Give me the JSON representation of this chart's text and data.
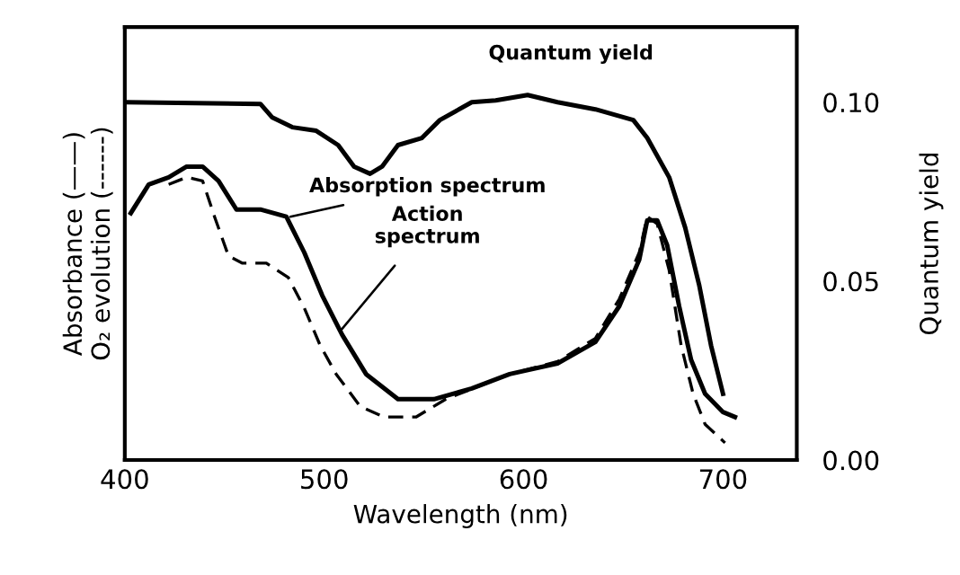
{
  "chart_data": {
    "type": "line",
    "xlabel": "Wavelength (nm)",
    "ylabel": "Absorbance (——)\nO₂ evolution (------)",
    "y2label": "Quantum yield",
    "xlim": [
      400,
      737
    ],
    "xticks": [
      400,
      500,
      600,
      700
    ],
    "ylim": [
      0,
      0.121
    ],
    "yticks": [
      {
        "value": 0,
        "label": "0.00"
      },
      {
        "value": 0.05,
        "label": "0.05"
      },
      {
        "value": 0.1,
        "label": "0.10"
      }
    ],
    "grid": false,
    "legend": false,
    "marker": "none",
    "series": [
      {
        "color": "#000000",
        "line_style": "solid",
        "x": [
          400,
          468,
          474,
          484,
          496,
          507,
          515,
          523,
          529,
          537,
          549,
          558,
          574,
          586,
          602,
          617,
          636,
          655,
          662,
          673,
          681,
          688,
          694,
          700
        ],
        "values": [
          0.1,
          0.0995,
          0.0957,
          0.093,
          0.092,
          0.088,
          0.082,
          0.08,
          0.082,
          0.088,
          0.09,
          0.095,
          0.1,
          0.1005,
          0.102,
          0.1,
          0.098,
          0.095,
          0.09,
          0.079,
          0.065,
          0.049,
          0.032,
          0.0185
        ]
      },
      {
        "color": "#000000",
        "line_style": "solid",
        "x": [
          403,
          412,
          422,
          431,
          439,
          447,
          456,
          468,
          481,
          490,
          499,
          509,
          521,
          537,
          555,
          574,
          593,
          617,
          636,
          648,
          658,
          662,
          667,
          672,
          678,
          684,
          691,
          700,
          706
        ],
        "values": [
          0.069,
          0.077,
          0.079,
          0.082,
          0.082,
          0.078,
          0.07,
          0.07,
          0.068,
          0.058,
          0.046,
          0.035,
          0.024,
          0.017,
          0.017,
          0.02,
          0.024,
          0.027,
          0.033,
          0.043,
          0.056,
          0.067,
          0.067,
          0.06,
          0.043,
          0.028,
          0.0185,
          0.0134,
          0.012
        ]
      },
      {
        "color": "#000000",
        "line_style": "dashed",
        "x": [
          422,
          431,
          439,
          445,
          452,
          459,
          471,
          482,
          490,
          498,
          506,
          518,
          530,
          546,
          561,
          593,
          617,
          636,
          648,
          658,
          662,
          667,
          673,
          679,
          685,
          691,
          701
        ],
        "values": [
          0.077,
          0.079,
          0.078,
          0.068,
          0.057,
          0.055,
          0.055,
          0.051,
          0.0425,
          0.032,
          0.024,
          0.015,
          0.012,
          0.012,
          0.017,
          0.024,
          0.0275,
          0.034,
          0.045,
          0.058,
          0.068,
          0.066,
          0.053,
          0.032,
          0.0185,
          0.01,
          0.0048
        ]
      }
    ],
    "annotations": [
      {
        "text": "Quantum yield",
        "x": 630,
        "y": 0.0995
      },
      {
        "text": "Absorption spectrum",
        "x": 483,
        "y": 0.068
      },
      {
        "text": "Action\nspectrum",
        "x": 508,
        "y": 0.036
      }
    ]
  }
}
